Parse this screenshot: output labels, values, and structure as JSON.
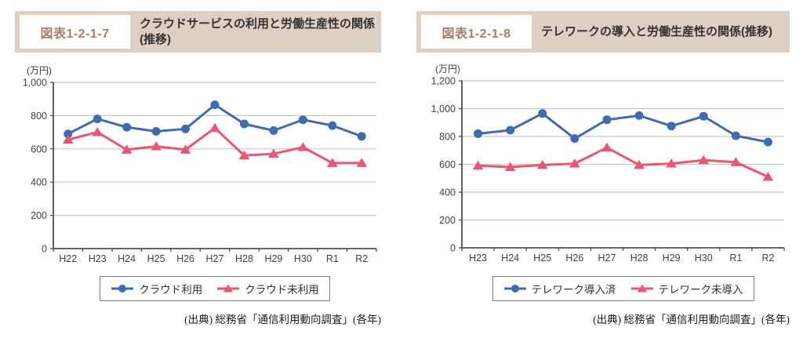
{
  "colors": {
    "header_band": "#ddcfc2",
    "figure_label_text": "#a87e6e",
    "title_text": "#333333",
    "series_blue": "#3e6cb3",
    "series_pink": "#f0536f",
    "gridline": "#c8c8c8",
    "axis": "#4f4f4f",
    "tick_text": "#404040"
  },
  "figures": [
    {
      "label": "図表1-2-1-7",
      "title": "クラウドサービスの利用と労働生産性の関係(推移)",
      "source": "(出典) 総務省「通信利用動向調査」(各年)"
    },
    {
      "label": "図表1-2-1-8",
      "title": "テレワークの導入と労働生産性の関係(推移)",
      "source": "(出典) 総務省「通信利用動向調査」(各年)"
    }
  ],
  "chart_data": [
    {
      "type": "line",
      "title": "クラウドサービスの利用と労働生産性の関係(推移)",
      "unit_label": "(万円)",
      "xlabel": "",
      "ylabel": "万円",
      "categories": [
        "H22",
        "H23",
        "H24",
        "H25",
        "H26",
        "H27",
        "H28",
        "H29",
        "H30",
        "R1",
        "R2"
      ],
      "ylim": [
        0,
        1000
      ],
      "ytick_interval": 200,
      "grid": true,
      "legend_position": "bottom",
      "series": [
        {
          "name": "クラウド利用",
          "marker": "circle",
          "color": "#3e6cb3",
          "values": [
            690,
            780,
            730,
            705,
            720,
            865,
            750,
            710,
            775,
            740,
            675
          ]
        },
        {
          "name": "クラウド未利用",
          "marker": "triangle",
          "color": "#f0536f",
          "values": [
            655,
            700,
            595,
            615,
            595,
            725,
            560,
            570,
            610,
            515,
            515
          ]
        }
      ]
    },
    {
      "type": "line",
      "title": "テレワークの導入と労働生産性の関係(推移)",
      "unit_label": "(万円)",
      "xlabel": "",
      "ylabel": "万円",
      "categories": [
        "H23",
        "H24",
        "H25",
        "H26",
        "H27",
        "H28",
        "H29",
        "H30",
        "R1",
        "R2"
      ],
      "ylim": [
        0,
        1200
      ],
      "ytick_interval": 200,
      "grid": true,
      "legend_position": "bottom",
      "series": [
        {
          "name": "テレワーク導入済",
          "marker": "circle",
          "color": "#3e6cb3",
          "values": [
            820,
            845,
            965,
            785,
            920,
            950,
            875,
            945,
            805,
            760
          ]
        },
        {
          "name": "テレワーク未導入",
          "marker": "triangle",
          "color": "#f0536f",
          "values": [
            590,
            580,
            595,
            605,
            720,
            595,
            605,
            630,
            615,
            510
          ]
        }
      ]
    }
  ]
}
